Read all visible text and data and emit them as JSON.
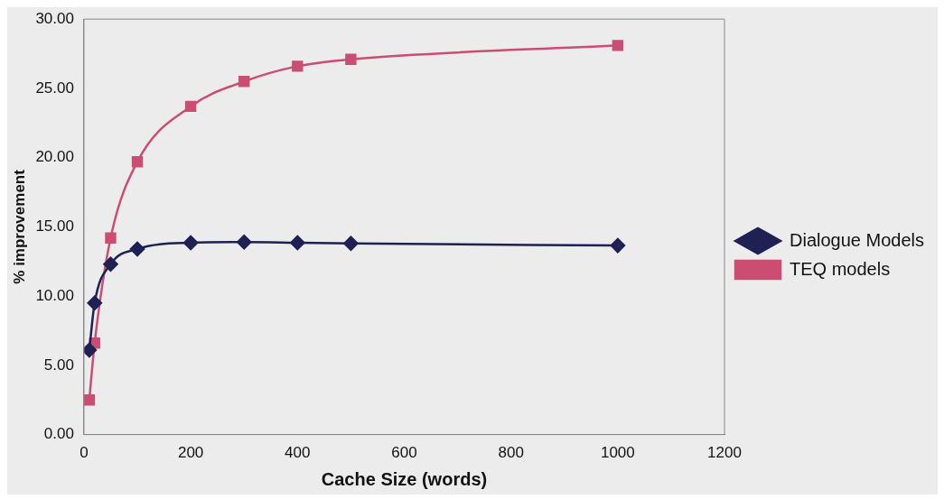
{
  "chart_data": {
    "type": "line",
    "xlabel": "Cache Size (words)",
    "ylabel": "% improvement",
    "xlim": [
      0,
      1200
    ],
    "xticks": [
      0,
      200,
      400,
      600,
      800,
      1000,
      1200
    ],
    "ylim": [
      0,
      30
    ],
    "yticks": [
      {
        "value": 0,
        "label": "0.00"
      },
      {
        "value": 5,
        "label": "5.00"
      },
      {
        "value": 10,
        "label": "10.00"
      },
      {
        "value": 15,
        "label": "15.00"
      },
      {
        "value": 20,
        "label": "20.00"
      },
      {
        "value": 25,
        "label": "25.00"
      },
      {
        "value": 30,
        "label": "30.00"
      }
    ],
    "x": [
      10,
      20,
      50,
      100,
      200,
      300,
      400,
      500,
      1000
    ],
    "grid": false,
    "legend": "right",
    "series": [
      {
        "name": "Dialogue Models",
        "color": "#1f2054",
        "marker": "diamond",
        "values": [
          6.1,
          9.5,
          12.3,
          13.4,
          13.85,
          13.9,
          13.85,
          13.8,
          13.65
        ]
      },
      {
        "name": "TEQ models",
        "color": "#cc4d72",
        "marker": "square",
        "values": [
          2.5,
          6.6,
          14.2,
          19.7,
          23.7,
          25.5,
          26.6,
          27.1,
          28.1
        ]
      }
    ]
  }
}
